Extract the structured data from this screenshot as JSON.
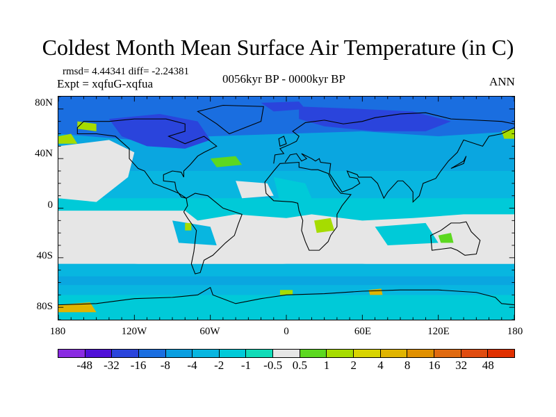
{
  "title": "Coldest Month Mean Surface Air Temperature (in C)",
  "stats": "rmsd= 4.44341 diff= -2.24381",
  "experiment": "Expt = xqfuG-xqfua",
  "period": "0056kyr BP - 0000kyr BP",
  "season": "ANN",
  "lat_labels": [
    "80N",
    "40N",
    "0",
    "40S",
    "80S"
  ],
  "lat_values": [
    80,
    40,
    0,
    -40,
    -80
  ],
  "lon_labels": [
    "180",
    "120W",
    "60W",
    "0",
    "60E",
    "120E",
    "180"
  ],
  "lon_values": [
    -180,
    -120,
    -60,
    0,
    60,
    120,
    180
  ],
  "colorbar": {
    "levels": [
      "-48",
      "-32",
      "-16",
      "-8",
      "-4",
      "-2",
      "-1",
      "-0.5",
      "0.5",
      "1",
      "2",
      "4",
      "8",
      "16",
      "32",
      "48"
    ],
    "colors": [
      "#8a2be2",
      "#5010d8",
      "#2a44dc",
      "#1a6ee0",
      "#0a9ee0",
      "#08b6e0",
      "#00cad8",
      "#10dcb8",
      "#e6e6e6",
      "#5cd820",
      "#a6dc00",
      "#d8d400",
      "#e0b400",
      "#e09000",
      "#e06a10",
      "#e04c10",
      "#e03000"
    ]
  }
}
